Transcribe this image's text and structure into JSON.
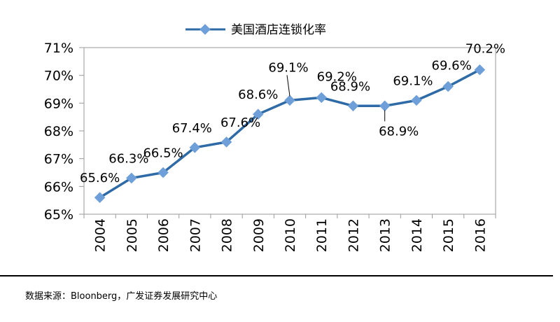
{
  "chart_data": {
    "type": "line",
    "legend": "美国酒店连锁化率",
    "legend_position": "top",
    "categories": [
      "2004",
      "2005",
      "2006",
      "2007",
      "2008",
      "2009",
      "2010",
      "2011",
      "2012",
      "2013",
      "2014",
      "2015",
      "2016"
    ],
    "series": [
      {
        "name": "美国酒店连锁化率",
        "values": [
          65.6,
          66.3,
          66.5,
          67.4,
          67.6,
          68.6,
          69.1,
          69.2,
          68.9,
          68.9,
          69.1,
          69.6,
          70.2
        ],
        "color": "#2E6BA6",
        "marker_color": "#6F9FD8"
      }
    ],
    "data_labels": [
      "65.6%",
      "66.3%",
      "66.5%",
      "67.4%",
      "67.6%",
      "68.6%",
      "69.1%",
      "69.2%",
      "68.9%",
      "68.9%",
      "69.1%",
      "69.6%",
      "70.2%"
    ],
    "y_ticks": [
      "65%",
      "66%",
      "67%",
      "68%",
      "69%",
      "70%",
      "71%"
    ],
    "ylim": [
      65,
      71
    ],
    "grid": false
  },
  "source": "数据来源：Bloonberg，广发证券发展研究中心"
}
